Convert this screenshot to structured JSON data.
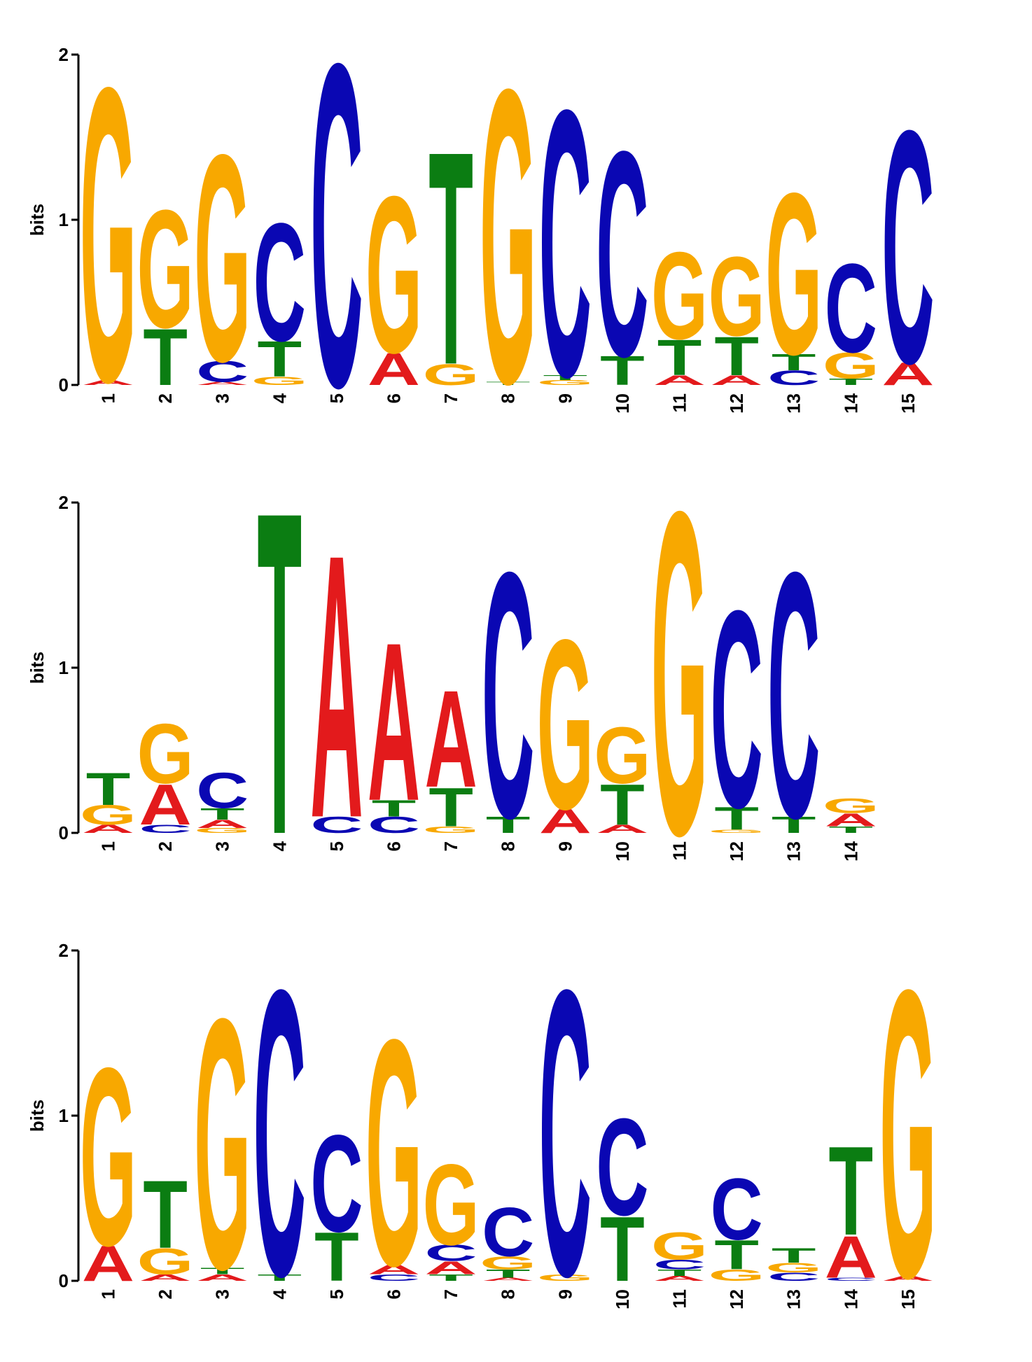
{
  "colors": {
    "A": "#e31a1c",
    "C": "#0a07b3",
    "G": "#f8a800",
    "T": "#0b7d12",
    "axis": "#000000"
  },
  "chart_data": [
    {
      "type": "sequence-logo",
      "ylabel": "bits",
      "ylim": [
        0,
        2
      ],
      "yticks": [
        0,
        1,
        2
      ],
      "positions": [
        {
          "label": "1",
          "stack": [
            [
              "A",
              0.03
            ],
            [
              "G",
              1.82
            ]
          ]
        },
        {
          "label": "2",
          "stack": [
            [
              "T",
              0.35
            ],
            [
              "G",
              0.73
            ]
          ]
        },
        {
          "label": "3",
          "stack": [
            [
              "A",
              0.02
            ],
            [
              "C",
              0.13
            ],
            [
              "G",
              1.28
            ]
          ]
        },
        {
          "label": "4",
          "stack": [
            [
              "G",
              0.05
            ],
            [
              "T",
              0.22
            ],
            [
              "C",
              0.73
            ]
          ]
        },
        {
          "label": "5",
          "stack": [
            [
              "C",
              2.0
            ]
          ]
        },
        {
          "label": "6",
          "stack": [
            [
              "A",
              0.2
            ],
            [
              "G",
              0.97
            ]
          ]
        },
        {
          "label": "7",
          "stack": [
            [
              "G",
              0.13
            ],
            [
              "T",
              1.32
            ]
          ]
        },
        {
          "label": "8",
          "stack": [
            [
              "T",
              0.02
            ],
            [
              "G",
              1.82
            ]
          ]
        },
        {
          "label": "9",
          "stack": [
            [
              "G",
              0.03
            ],
            [
              "T",
              0.03
            ],
            [
              "C",
              1.65
            ]
          ]
        },
        {
          "label": "10",
          "stack": [
            [
              "T",
              0.18
            ],
            [
              "C",
              1.27
            ]
          ]
        },
        {
          "label": "11",
          "stack": [
            [
              "A",
              0.06
            ],
            [
              "T",
              0.22
            ],
            [
              "G",
              0.54
            ]
          ]
        },
        {
          "label": "12",
          "stack": [
            [
              "A",
              0.06
            ],
            [
              "T",
              0.24
            ],
            [
              "G",
              0.49
            ]
          ]
        },
        {
          "label": "13",
          "stack": [
            [
              "C",
              0.09
            ],
            [
              "T",
              0.1
            ],
            [
              "G",
              1.0
            ]
          ]
        },
        {
          "label": "14",
          "stack": [
            [
              "T",
              0.04
            ],
            [
              "G",
              0.16
            ],
            [
              "C",
              0.55
            ]
          ]
        },
        {
          "label": "15",
          "stack": [
            [
              "A",
              0.14
            ],
            [
              "C",
              1.44
            ]
          ]
        }
      ]
    },
    {
      "type": "sequence-logo",
      "ylabel": "bits",
      "ylim": [
        0,
        2
      ],
      "yticks": [
        0,
        1,
        2
      ],
      "positions": [
        {
          "label": "1",
          "stack": [
            [
              "A",
              0.05
            ],
            [
              "G",
              0.12
            ],
            [
              "T",
              0.2
            ]
          ]
        },
        {
          "label": "2",
          "stack": [
            [
              "C",
              0.05
            ],
            [
              "A",
              0.25
            ],
            [
              "G",
              0.37
            ]
          ]
        },
        {
          "label": "3",
          "stack": [
            [
              "G",
              0.03
            ],
            [
              "A",
              0.05
            ],
            [
              "T",
              0.07
            ],
            [
              "C",
              0.22
            ]
          ]
        },
        {
          "label": "4",
          "stack": [
            [
              "T",
              2.0
            ]
          ]
        },
        {
          "label": "5",
          "stack": [
            [
              "C",
              0.1
            ],
            [
              "A",
              1.63
            ]
          ]
        },
        {
          "label": "6",
          "stack": [
            [
              "C",
              0.1
            ],
            [
              "T",
              0.1
            ],
            [
              "A",
              0.98
            ]
          ]
        },
        {
          "label": "7",
          "stack": [
            [
              "G",
              0.04
            ],
            [
              "T",
              0.24
            ],
            [
              "A",
              0.6
            ]
          ]
        },
        {
          "label": "8",
          "stack": [
            [
              "T",
              0.1
            ],
            [
              "C",
              1.52
            ]
          ]
        },
        {
          "label": "9",
          "stack": [
            [
              "A",
              0.15
            ],
            [
              "G",
              1.05
            ]
          ]
        },
        {
          "label": "10",
          "stack": [
            [
              "A",
              0.05
            ],
            [
              "T",
              0.25
            ],
            [
              "G",
              0.35
            ]
          ]
        },
        {
          "label": "11",
          "stack": [
            [
              "G",
              2.0
            ]
          ]
        },
        {
          "label": "12",
          "stack": [
            [
              "G",
              0.02
            ],
            [
              "T",
              0.14
            ],
            [
              "C",
              1.22
            ]
          ]
        },
        {
          "label": "13",
          "stack": [
            [
              "T",
              0.1
            ],
            [
              "C",
              1.52
            ]
          ]
        },
        {
          "label": "14",
          "stack": [
            [
              "T",
              0.04
            ],
            [
              "A",
              0.08
            ],
            [
              "G",
              0.09
            ]
          ]
        }
      ]
    },
    {
      "type": "sequence-logo",
      "ylabel": "bits",
      "ylim": [
        0,
        2
      ],
      "yticks": [
        0,
        1,
        2
      ],
      "positions": [
        {
          "label": "1",
          "stack": [
            [
              "A",
              0.22
            ],
            [
              "G",
              1.1
            ]
          ]
        },
        {
          "label": "2",
          "stack": [
            [
              "A",
              0.04
            ],
            [
              "G",
              0.16
            ],
            [
              "T",
              0.42
            ]
          ]
        },
        {
          "label": "3",
          "stack": [
            [
              "A",
              0.04
            ],
            [
              "T",
              0.04
            ],
            [
              "G",
              1.55
            ]
          ]
        },
        {
          "label": "4",
          "stack": [
            [
              "T",
              0.04
            ],
            [
              "C",
              1.77
            ]
          ]
        },
        {
          "label": "5",
          "stack": [
            [
              "T",
              0.3
            ],
            [
              "C",
              0.6
            ]
          ]
        },
        {
          "label": "6",
          "stack": [
            [
              "C",
              0.04
            ],
            [
              "A",
              0.06
            ],
            [
              "G",
              1.4
            ]
          ]
        },
        {
          "label": "7",
          "stack": [
            [
              "T",
              0.04
            ],
            [
              "A",
              0.08
            ],
            [
              "C",
              0.1
            ],
            [
              "G",
              0.5
            ]
          ]
        },
        {
          "label": "8",
          "stack": [
            [
              "A",
              0.02
            ],
            [
              "T",
              0.05
            ],
            [
              "G",
              0.08
            ],
            [
              "C",
              0.3
            ]
          ]
        },
        {
          "label": "9",
          "stack": [
            [
              "G",
              0.04
            ],
            [
              "C",
              1.77
            ]
          ]
        },
        {
          "label": "10",
          "stack": [
            [
              "T",
              0.4
            ],
            [
              "C",
              0.6
            ]
          ]
        },
        {
          "label": "11",
          "stack": [
            [
              "A",
              0.03
            ],
            [
              "T",
              0.04
            ],
            [
              "C",
              0.06
            ],
            [
              "G",
              0.17
            ]
          ]
        },
        {
          "label": "12",
          "stack": [
            [
              "G",
              0.07
            ],
            [
              "T",
              0.18
            ],
            [
              "C",
              0.38
            ]
          ]
        },
        {
          "label": "13",
          "stack": [
            [
              "C",
              0.05
            ],
            [
              "G",
              0.06
            ],
            [
              "T",
              0.09
            ]
          ]
        },
        {
          "label": "14",
          "stack": [
            [
              "C",
              0.02
            ],
            [
              "A",
              0.26
            ],
            [
              "T",
              0.55
            ]
          ]
        },
        {
          "label": "15",
          "stack": [
            [
              "A",
              0.03
            ],
            [
              "G",
              1.78
            ]
          ]
        }
      ]
    }
  ]
}
